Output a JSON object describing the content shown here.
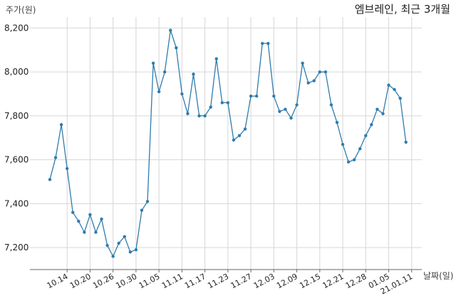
{
  "chart_data": {
    "type": "line",
    "title": "엠브레인, 최근 3개월",
    "ylabel": "주가(원)",
    "xlabel": "날짜(일)",
    "ylim": [
      7100,
      8250
    ],
    "yticks": [
      7200,
      7400,
      7600,
      7800,
      8000,
      8200
    ],
    "ytick_labels": [
      "7,200",
      "7,400",
      "7,600",
      "7,800",
      "8,000",
      "8,200"
    ],
    "xtick_labels": [
      "10.14",
      "10.20",
      "10.26",
      "10.30",
      "11.05",
      "11.11",
      "11.17",
      "11.23",
      "11.27",
      "12.03",
      "12.09",
      "12.15",
      "12.21",
      "12.28",
      "01.05",
      "21.01.11"
    ],
    "xtick_index": [
      3,
      7,
      11,
      15,
      19,
      23,
      27,
      31,
      35,
      39,
      43,
      47,
      51,
      55,
      59,
      63
    ],
    "grid": true,
    "color": "#2f7cae",
    "values": [
      7510,
      7610,
      7760,
      7560,
      7360,
      7320,
      7270,
      7350,
      7270,
      7330,
      7210,
      7160,
      7220,
      7250,
      7180,
      7190,
      7370,
      7410,
      8040,
      7910,
      8000,
      8190,
      8110,
      7900,
      7810,
      7990,
      7800,
      7800,
      7840,
      8060,
      7860,
      7860,
      7690,
      7710,
      7740,
      7890,
      7890,
      8130,
      8130,
      7890,
      7820,
      7830,
      7790,
      7850,
      8040,
      7950,
      7960,
      8000,
      8000,
      7850,
      7770,
      7670,
      7590,
      7600,
      7650,
      7710,
      7760,
      7830,
      7810,
      7940,
      7920,
      7880,
      7680
    ]
  }
}
